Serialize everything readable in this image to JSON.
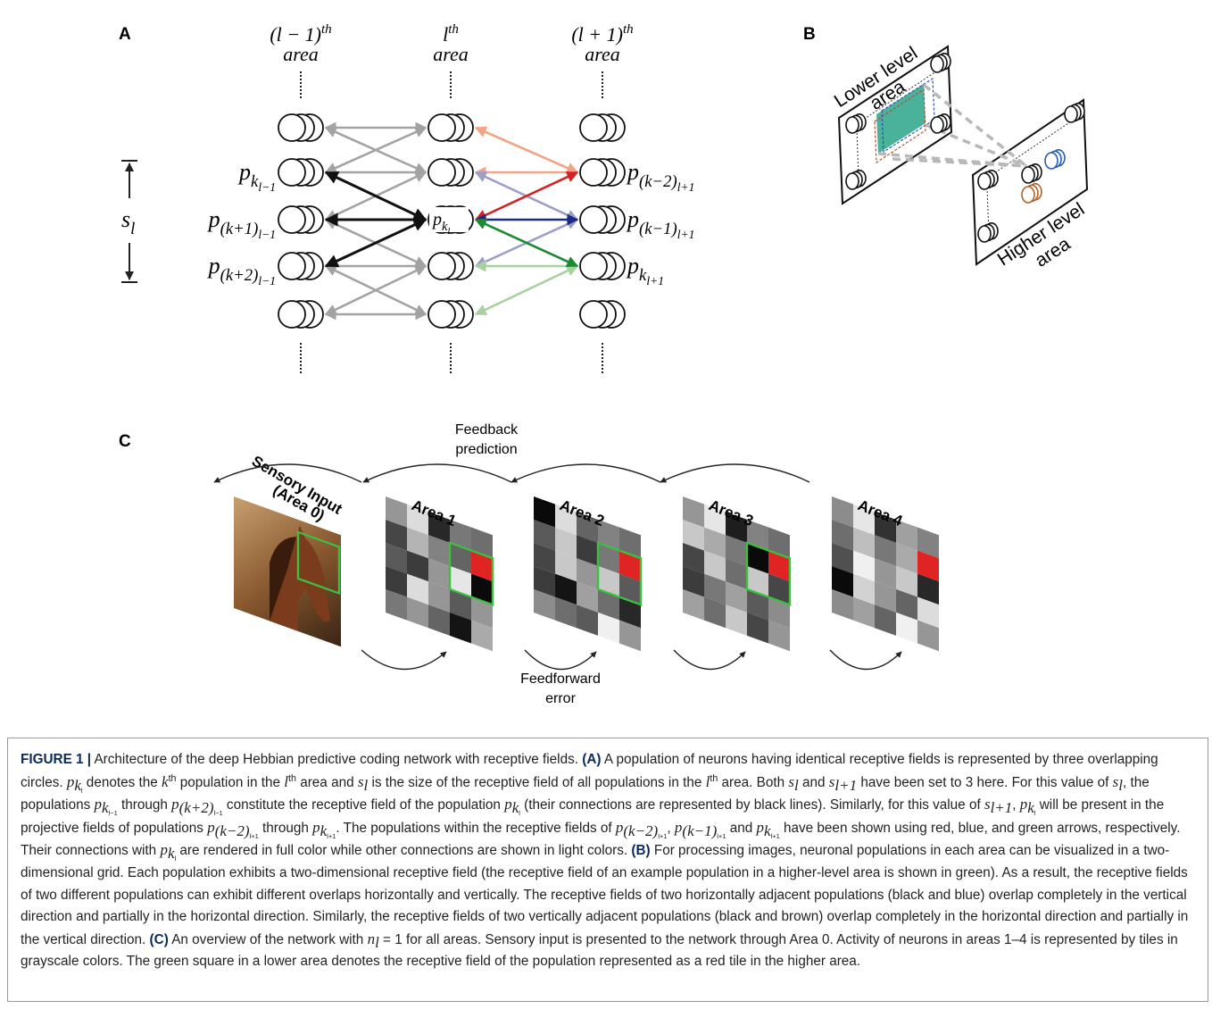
{
  "panel_a": {
    "label": "A",
    "columns": [
      {
        "pre": "(l − 1)",
        "sup": "th",
        "name": "area"
      },
      {
        "pre": "l",
        "sup": "th",
        "name": "area"
      },
      {
        "pre": "(l + 1)",
        "sup": "th",
        "name": "area"
      }
    ],
    "left_rows": [
      {
        "base": "p",
        "sub": "k",
        "subsub": "l−1"
      },
      {
        "base": "p",
        "sub": "(k+1)",
        "subsub": "l−1"
      },
      {
        "base": "p",
        "sub": "(k+2)",
        "subsub": "l−1"
      }
    ],
    "center": {
      "base": "p",
      "sub": "k",
      "subsub": "l"
    },
    "right_rows": [
      {
        "base": "p",
        "sub": "(k−2)",
        "subsub": "l+1"
      },
      {
        "base": "p",
        "sub": "(k−1)",
        "subsub": "l+1"
      },
      {
        "base": "p",
        "sub": "k",
        "subsub": "l+1"
      }
    ],
    "size": {
      "base": "s",
      "sub": "l"
    }
  },
  "panel_b": {
    "label": "B",
    "lower": [
      "Lower level",
      "area"
    ],
    "higher": [
      "Higher level",
      "area"
    ]
  },
  "panel_c": {
    "label": "C",
    "input": [
      "Sensory Input",
      "(Area 0)"
    ],
    "areas": [
      "Area 1",
      "Area 2",
      "Area 3",
      "Area 4"
    ],
    "feedback": [
      "Feedback",
      "prediction"
    ],
    "feedforward": [
      "Feedforward",
      "error"
    ]
  },
  "caption": {
    "runs": [
      {
        "b": "FIGURE 1 |"
      },
      " Architecture of the deep Hebbian predictive coding network with receptive fields. ",
      {
        "b": "(A)"
      },
      " A population of neurons having identical receptive fields is represented by three overlapping circles. ",
      {
        "m": "p",
        "sub": "k",
        "subsub": "l"
      },
      " denotes the ",
      {
        "m": "k",
        "sup": "th"
      },
      " population in the ",
      {
        "m": "l",
        "sup": "th"
      },
      " area and ",
      {
        "m": "s",
        "sub": "l"
      },
      " is the size of the receptive field of all populations in the ",
      {
        "m": "l",
        "sup": "th"
      },
      " area. Both ",
      {
        "m": "s",
        "sub": "l"
      },
      " and ",
      {
        "m": "s",
        "sub": "l+1"
      },
      " have been set to 3 here. For this value of ",
      {
        "m": "s",
        "sub": "l"
      },
      ", the populations ",
      {
        "m": "p",
        "sub": "k",
        "subsub": "l−1"
      },
      " through ",
      {
        "m": "p",
        "sub": "(k+2)",
        "subsub": "l−1"
      },
      " constitute the receptive field of the population ",
      {
        "m": "p",
        "sub": "k",
        "subsub": "l"
      },
      " (their connections are represented by black lines). Similarly, for this value of ",
      {
        "m": "s",
        "sub": "l+1"
      },
      ", ",
      {
        "m": "p",
        "sub": "k",
        "subsub": "l"
      },
      " will be present in the projective fields of populations ",
      {
        "m": "p",
        "sub": "(k−2)",
        "subsub": "l+1"
      },
      " through ",
      {
        "m": "p",
        "sub": "k",
        "subsub": "l+1"
      },
      ". The populations within the receptive fields of ",
      {
        "m": "p",
        "sub": "(k−2)",
        "subsub": "l+1"
      },
      ", ",
      {
        "m": "p",
        "sub": "(k−1)",
        "subsub": "l+1"
      },
      " and ",
      {
        "m": "p",
        "sub": "k",
        "subsub": "l+1"
      },
      " have been shown using red, blue, and green arrows, respectively. Their connections with ",
      {
        "m": "p",
        "sub": "k",
        "subsub": "l"
      },
      " are rendered in full color while other connections are shown in light colors. ",
      {
        "b": "(B)"
      },
      " For processing images, neuronal populations in each area can be visualized in a two-dimensional grid. Each population exhibits a two-dimensional receptive field (the receptive field of an example population in a higher-level area is shown in green). As a result, the receptive fields of two different populations can exhibit different overlaps horizontally and vertically. The receptive fields of two horizontally adjacent populations (black and blue) overlap completely in the vertical direction and partially in the horizontal direction. Similarly, the receptive fields of two vertically adjacent populations (black and brown) overlap completely in the horizontal direction and partially in the vertical direction. ",
      {
        "b": "(C)"
      },
      " An overview of the network with ",
      {
        "m": "n",
        "sub": "l"
      },
      " = 1 for all areas. Sensory input is presented to the network through Area 0. Activity of neurons in areas 1–4 is represented by tiles in grayscale colors. The green square in a lower area denotes the receptive field of the population represented as a red tile in the higher area."
    ]
  }
}
